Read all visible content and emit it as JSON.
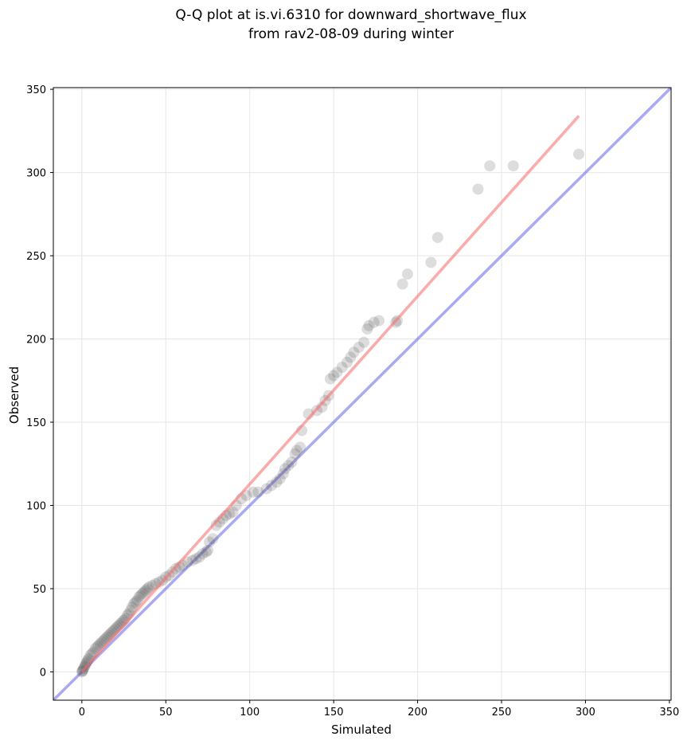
{
  "chart_data": {
    "type": "scatter",
    "title": "Q-Q plot at is.vi.6310 for downward_shortwave_flux",
    "subtitle": "from rav2-08-09 during winter",
    "xlabel": "Simulated",
    "ylabel": "Observed",
    "xlim": [
      -17,
      351
    ],
    "ylim": [
      -17,
      351
    ],
    "xticks": [
      0,
      50,
      100,
      150,
      200,
      250,
      300,
      350
    ],
    "yticks": [
      0,
      50,
      100,
      150,
      200,
      250,
      300,
      350
    ],
    "grid": true,
    "series": [
      {
        "type": "scatter",
        "color": "#555555",
        "x": [
          0,
          0.3,
          0.6,
          1,
          1.5,
          2,
          2.5,
          3,
          3.5,
          4,
          5,
          6,
          7,
          8,
          9,
          10,
          11,
          12,
          13,
          14,
          15,
          16,
          17,
          18,
          19,
          20,
          21,
          22,
          23,
          24,
          25,
          26,
          27,
          28,
          29,
          30,
          31,
          32,
          33,
          34,
          35,
          36,
          37,
          38,
          39,
          40,
          42,
          44,
          46,
          48,
          50,
          52,
          54,
          56,
          58,
          60,
          63,
          66,
          68,
          70,
          72,
          74,
          75,
          76,
          78,
          80,
          82,
          84,
          86,
          88,
          90,
          92,
          95,
          98,
          102,
          105,
          110,
          113,
          116,
          118,
          120,
          121,
          123,
          125,
          127,
          128,
          130,
          131,
          135,
          140,
          143,
          145,
          147,
          148,
          150,
          152,
          155,
          158,
          160,
          162,
          165,
          168,
          170,
          171,
          174,
          177,
          187,
          188,
          191,
          194,
          208,
          212,
          236,
          243,
          257,
          296
        ],
        "y": [
          0,
          0.5,
          1,
          2,
          3,
          4,
          5,
          6,
          7,
          8,
          10,
          11,
          12,
          14,
          15,
          16,
          17,
          18,
          19,
          20,
          21,
          22,
          23,
          24,
          25,
          26,
          27,
          28,
          29,
          30,
          31,
          32,
          34,
          35,
          37,
          39,
          41,
          42,
          43,
          45,
          46,
          47,
          48,
          49,
          50,
          51,
          52,
          53,
          54,
          55,
          57,
          58,
          60,
          62,
          63,
          64,
          66,
          67,
          68,
          69,
          71,
          72,
          73,
          78,
          80,
          88,
          90,
          92,
          94,
          95,
          96,
          100,
          104,
          106,
          108,
          108,
          110,
          112,
          114,
          116,
          119,
          122,
          124,
          126,
          131,
          133,
          135,
          145,
          155,
          157,
          159,
          163,
          166,
          176,
          178,
          180,
          183,
          186,
          189,
          192,
          195,
          198,
          206,
          208,
          210,
          211,
          210,
          211,
          233,
          239,
          246,
          261,
          290,
          304,
          304,
          311
        ]
      },
      {
        "type": "line",
        "color": "#ff7070",
        "x": [
          0,
          296
        ],
        "y": [
          0,
          334
        ]
      },
      {
        "type": "line",
        "color": "#7070f0",
        "x": [
          -17,
          351
        ],
        "y": [
          -17,
          351
        ]
      }
    ]
  }
}
